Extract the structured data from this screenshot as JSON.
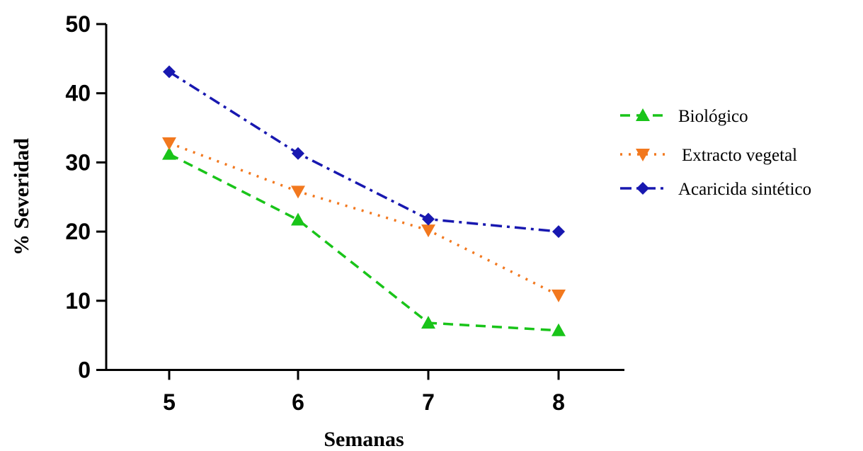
{
  "chart_data": {
    "type": "line",
    "title": "",
    "xlabel": "Semanas",
    "ylabel": "% Severidad",
    "x": [
      5,
      6,
      7,
      8
    ],
    "x_tick_labels": [
      "5",
      "6",
      "7",
      "8"
    ],
    "ylim": [
      0,
      50
    ],
    "y_ticks": [
      0,
      10,
      20,
      30,
      40,
      50
    ],
    "y_tick_labels": [
      "0",
      "10",
      "20",
      "30",
      "40",
      "50"
    ],
    "grid": false,
    "legend_position": "right",
    "series": [
      {
        "name": "Biológico",
        "values": [
          31.2,
          21.7,
          6.8,
          5.7
        ],
        "color": "#19c419",
        "marker": "triangle-up",
        "line_style": "dashed"
      },
      {
        "name": "Extracto vegetal",
        "values": [
          32.8,
          25.8,
          20.2,
          10.8
        ],
        "color": "#f2781e",
        "marker": "triangle-down",
        "line_style": "dotted"
      },
      {
        "name": "Acaricida sintético",
        "values": [
          43.1,
          31.3,
          21.8,
          20.0
        ],
        "color": "#1818b0",
        "marker": "diamond",
        "line_style": "dash-dot"
      }
    ]
  }
}
